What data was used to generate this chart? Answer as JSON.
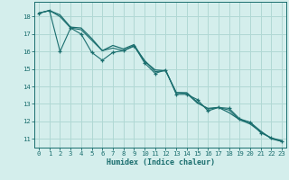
{
  "title": "",
  "xlabel": "Humidex (Indice chaleur)",
  "bg_color": "#d4eeec",
  "grid_color": "#b0d8d4",
  "line_color": "#1a6e6e",
  "xlim": [
    -0.4,
    23.4
  ],
  "ylim": [
    10.5,
    18.85
  ],
  "yticks": [
    11,
    12,
    13,
    14,
    15,
    16,
    17,
    18
  ],
  "xticks": [
    0,
    1,
    2,
    3,
    4,
    5,
    6,
    7,
    8,
    9,
    10,
    11,
    12,
    13,
    14,
    15,
    16,
    17,
    18,
    19,
    20,
    21,
    22,
    23
  ],
  "series1_x": [
    0,
    1,
    2,
    3,
    4,
    5,
    6,
    7,
    8,
    9,
    10,
    11,
    12,
    13,
    14,
    15,
    16,
    17,
    18,
    19,
    20,
    21,
    22,
    23
  ],
  "series1_y": [
    18.2,
    18.35,
    18.1,
    17.4,
    17.35,
    16.75,
    16.05,
    16.35,
    16.15,
    16.4,
    15.45,
    14.95,
    14.9,
    13.65,
    13.6,
    13.05,
    12.75,
    12.8,
    12.5,
    12.1,
    11.85,
    11.4,
    11.05,
    10.9
  ],
  "series2_x": [
    0,
    1,
    2,
    3,
    4,
    5,
    6,
    7,
    8,
    9,
    10,
    11,
    12,
    13,
    14,
    15,
    16,
    17,
    18,
    19,
    20,
    21,
    22,
    23
  ],
  "series2_y": [
    18.2,
    18.35,
    16.0,
    17.35,
    17.0,
    15.95,
    15.5,
    15.95,
    16.05,
    16.35,
    15.35,
    14.75,
    14.95,
    13.55,
    13.55,
    13.25,
    12.6,
    12.8,
    12.75,
    12.15,
    11.95,
    11.35,
    11.05,
    10.85
  ],
  "series3_x": [
    0,
    1,
    2,
    3,
    4,
    5,
    6,
    7,
    8,
    9,
    10,
    11,
    12,
    13,
    14,
    15,
    16,
    17,
    18,
    19,
    20,
    21,
    22,
    23
  ],
  "series3_y": [
    18.2,
    18.35,
    18.0,
    17.35,
    17.25,
    16.65,
    16.05,
    16.2,
    16.05,
    16.3,
    15.5,
    14.85,
    14.9,
    13.65,
    13.65,
    13.1,
    12.7,
    12.8,
    12.65,
    12.1,
    11.95,
    11.45,
    11.0,
    10.85
  ]
}
